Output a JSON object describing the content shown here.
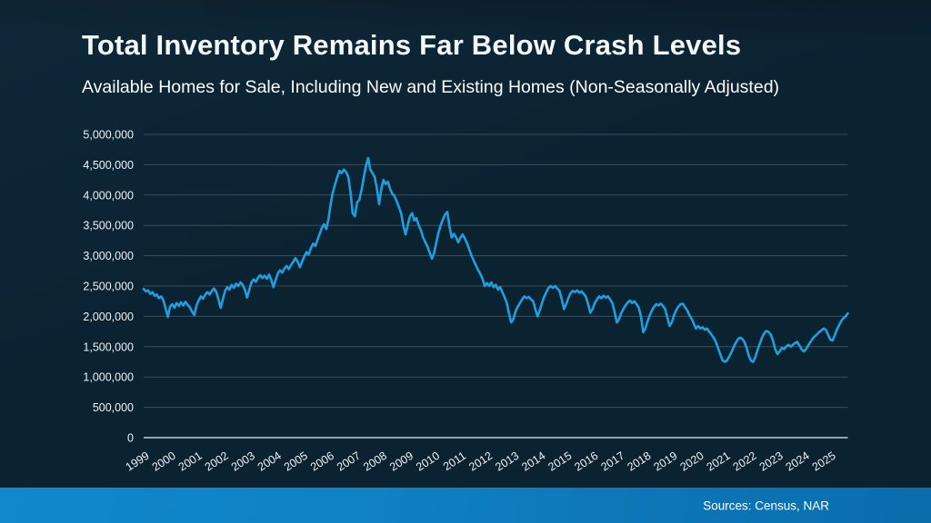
{
  "slide": {
    "title": "Total Inventory Remains Far Below Crash Levels",
    "subtitle": "Available Homes for Sale, Including New and Existing Homes (Non-Seasonally Adjusted)",
    "source": "Sources: Census, NAR"
  },
  "colors": {
    "background": "#0b2231",
    "line": "#1f9fe0",
    "gridline": "#63747f",
    "axis_line": "#cdd7dc",
    "tick_text": "#eef3f5",
    "footer_bar": "#0f82c5",
    "title_text": "#f5f8fa"
  },
  "chart_data": {
    "type": "line",
    "title": "Total Inventory Remains Far Below Crash Levels",
    "subtitle": "Available Homes for Sale, Including New and Existing Homes (Non-Seasonally Adjusted)",
    "frequency": "monthly",
    "x_start": "1999-01",
    "x_end": "2025-09",
    "units": "homes for sale, millions",
    "ylim": [
      0,
      5000000
    ],
    "y_tick_step": 500000,
    "grid": true,
    "legend": false,
    "y_tick_labels": [
      "0",
      "500,000",
      "1,000,000",
      "1,500,000",
      "2,000,000",
      "2,500,000",
      "3,000,000",
      "3,500,000",
      "4,000,000",
      "4,500,000",
      "5,000,000"
    ],
    "x_tick_labels": [
      "1999",
      "2000",
      "2001",
      "2002",
      "2003",
      "2004",
      "2005",
      "2006",
      "2007",
      "2008",
      "2009",
      "2010",
      "2011",
      "2012",
      "2013",
      "2014",
      "2015",
      "2016",
      "2017",
      "2018",
      "2019",
      "2020",
      "2021",
      "2022",
      "2023",
      "2024",
      "2025"
    ],
    "series": [
      {
        "name": "Available homes for sale (new + existing)",
        "values_millions": [
          2.45,
          2.41,
          2.43,
          2.37,
          2.4,
          2.34,
          2.36,
          2.3,
          2.33,
          2.26,
          2.13,
          1.99,
          2.16,
          2.2,
          2.14,
          2.22,
          2.17,
          2.23,
          2.18,
          2.24,
          2.19,
          2.15,
          2.08,
          2.02,
          2.18,
          2.26,
          2.33,
          2.29,
          2.36,
          2.4,
          2.36,
          2.42,
          2.46,
          2.4,
          2.28,
          2.14,
          2.28,
          2.42,
          2.48,
          2.44,
          2.52,
          2.47,
          2.54,
          2.5,
          2.56,
          2.52,
          2.44,
          2.31,
          2.44,
          2.56,
          2.61,
          2.57,
          2.64,
          2.68,
          2.63,
          2.67,
          2.62,
          2.69,
          2.6,
          2.48,
          2.6,
          2.71,
          2.76,
          2.72,
          2.79,
          2.83,
          2.78,
          2.85,
          2.9,
          2.96,
          2.9,
          2.81,
          2.9,
          2.99,
          3.06,
          3.02,
          3.12,
          3.2,
          3.16,
          3.26,
          3.36,
          3.46,
          3.52,
          3.44,
          3.6,
          3.85,
          4.05,
          4.18,
          4.3,
          4.4,
          4.36,
          4.42,
          4.38,
          4.3,
          4.05,
          3.7,
          3.65,
          3.88,
          3.92,
          4.08,
          4.28,
          4.48,
          4.61,
          4.42,
          4.36,
          4.3,
          4.1,
          3.85,
          4.1,
          4.25,
          4.18,
          4.22,
          4.1,
          4.02,
          3.98,
          3.9,
          3.8,
          3.7,
          3.5,
          3.35,
          3.5,
          3.65,
          3.7,
          3.58,
          3.62,
          3.5,
          3.42,
          3.3,
          3.22,
          3.15,
          3.05,
          2.95,
          3.05,
          3.22,
          3.38,
          3.5,
          3.6,
          3.68,
          3.72,
          3.48,
          3.3,
          3.36,
          3.3,
          3.22,
          3.3,
          3.35,
          3.28,
          3.2,
          3.1,
          3.0,
          2.92,
          2.84,
          2.76,
          2.7,
          2.62,
          2.5,
          2.55,
          2.5,
          2.56,
          2.48,
          2.52,
          2.44,
          2.48,
          2.4,
          2.32,
          2.22,
          2.05,
          1.9,
          1.95,
          2.08,
          2.16,
          2.22,
          2.28,
          2.33,
          2.3,
          2.32,
          2.28,
          2.25,
          2.12,
          2.0,
          2.1,
          2.22,
          2.32,
          2.4,
          2.47,
          2.5,
          2.47,
          2.5,
          2.46,
          2.42,
          2.28,
          2.12,
          2.2,
          2.3,
          2.38,
          2.42,
          2.4,
          2.43,
          2.39,
          2.41,
          2.37,
          2.32,
          2.2,
          2.06,
          2.12,
          2.22,
          2.28,
          2.33,
          2.3,
          2.34,
          2.31,
          2.33,
          2.28,
          2.22,
          2.08,
          1.9,
          1.95,
          2.05,
          2.12,
          2.18,
          2.23,
          2.26,
          2.22,
          2.25,
          2.2,
          2.14,
          2.0,
          1.74,
          1.8,
          1.92,
          2.02,
          2.1,
          2.16,
          2.2,
          2.18,
          2.21,
          2.17,
          2.12,
          1.98,
          1.84,
          1.9,
          2.02,
          2.1,
          2.16,
          2.2,
          2.21,
          2.15,
          2.1,
          2.02,
          1.96,
          1.88,
          1.8,
          1.84,
          1.8,
          1.82,
          1.78,
          1.8,
          1.75,
          1.7,
          1.65,
          1.58,
          1.48,
          1.38,
          1.28,
          1.25,
          1.27,
          1.33,
          1.4,
          1.48,
          1.56,
          1.62,
          1.65,
          1.63,
          1.58,
          1.48,
          1.35,
          1.27,
          1.25,
          1.33,
          1.45,
          1.55,
          1.65,
          1.72,
          1.76,
          1.74,
          1.7,
          1.6,
          1.46,
          1.38,
          1.42,
          1.48,
          1.46,
          1.5,
          1.53,
          1.5,
          1.53,
          1.56,
          1.58,
          1.52,
          1.46,
          1.42,
          1.46,
          1.52,
          1.58,
          1.63,
          1.67,
          1.7,
          1.74,
          1.77,
          1.8,
          1.78,
          1.7,
          1.62,
          1.6,
          1.68,
          1.78,
          1.85,
          1.92,
          1.97,
          2.0,
          2.05
        ]
      }
    ]
  }
}
